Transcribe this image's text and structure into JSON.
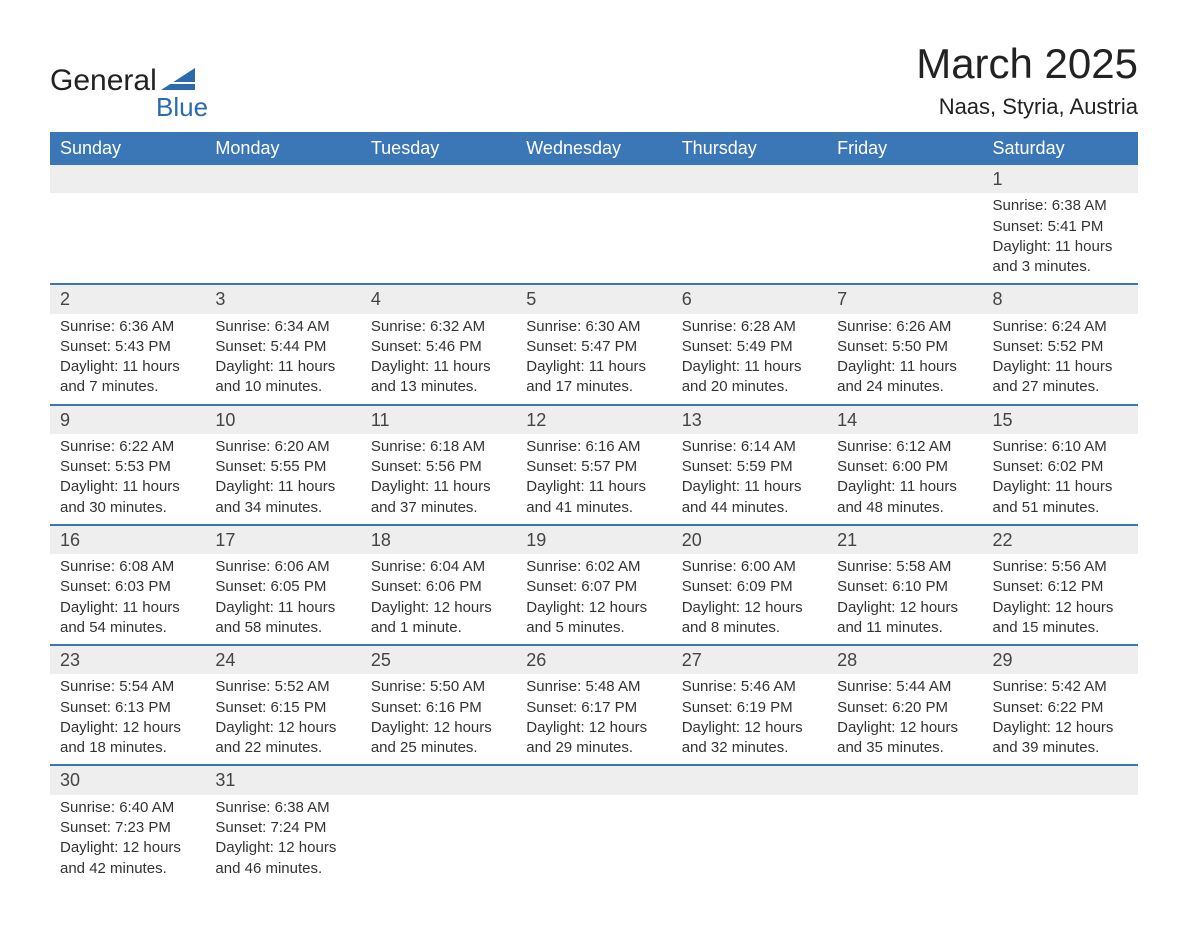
{
  "logo": {
    "top": "General",
    "bottom": "Blue",
    "shape_color": "#2b6aad"
  },
  "title": "March 2025",
  "location": "Naas, Styria, Austria",
  "header_bg": "#3b77b6",
  "daynum_bg": "#eeeeee",
  "border_color": "#3b77b6",
  "columns": [
    "Sunday",
    "Monday",
    "Tuesday",
    "Wednesday",
    "Thursday",
    "Friday",
    "Saturday"
  ],
  "weeks": [
    [
      null,
      null,
      null,
      null,
      null,
      null,
      {
        "n": "1",
        "sr": "Sunrise: 6:38 AM",
        "ss": "Sunset: 5:41 PM",
        "d1": "Daylight: 11 hours",
        "d2": "and 3 minutes."
      }
    ],
    [
      {
        "n": "2",
        "sr": "Sunrise: 6:36 AM",
        "ss": "Sunset: 5:43 PM",
        "d1": "Daylight: 11 hours",
        "d2": "and 7 minutes."
      },
      {
        "n": "3",
        "sr": "Sunrise: 6:34 AM",
        "ss": "Sunset: 5:44 PM",
        "d1": "Daylight: 11 hours",
        "d2": "and 10 minutes."
      },
      {
        "n": "4",
        "sr": "Sunrise: 6:32 AM",
        "ss": "Sunset: 5:46 PM",
        "d1": "Daylight: 11 hours",
        "d2": "and 13 minutes."
      },
      {
        "n": "5",
        "sr": "Sunrise: 6:30 AM",
        "ss": "Sunset: 5:47 PM",
        "d1": "Daylight: 11 hours",
        "d2": "and 17 minutes."
      },
      {
        "n": "6",
        "sr": "Sunrise: 6:28 AM",
        "ss": "Sunset: 5:49 PM",
        "d1": "Daylight: 11 hours",
        "d2": "and 20 minutes."
      },
      {
        "n": "7",
        "sr": "Sunrise: 6:26 AM",
        "ss": "Sunset: 5:50 PM",
        "d1": "Daylight: 11 hours",
        "d2": "and 24 minutes."
      },
      {
        "n": "8",
        "sr": "Sunrise: 6:24 AM",
        "ss": "Sunset: 5:52 PM",
        "d1": "Daylight: 11 hours",
        "d2": "and 27 minutes."
      }
    ],
    [
      {
        "n": "9",
        "sr": "Sunrise: 6:22 AM",
        "ss": "Sunset: 5:53 PM",
        "d1": "Daylight: 11 hours",
        "d2": "and 30 minutes."
      },
      {
        "n": "10",
        "sr": "Sunrise: 6:20 AM",
        "ss": "Sunset: 5:55 PM",
        "d1": "Daylight: 11 hours",
        "d2": "and 34 minutes."
      },
      {
        "n": "11",
        "sr": "Sunrise: 6:18 AM",
        "ss": "Sunset: 5:56 PM",
        "d1": "Daylight: 11 hours",
        "d2": "and 37 minutes."
      },
      {
        "n": "12",
        "sr": "Sunrise: 6:16 AM",
        "ss": "Sunset: 5:57 PM",
        "d1": "Daylight: 11 hours",
        "d2": "and 41 minutes."
      },
      {
        "n": "13",
        "sr": "Sunrise: 6:14 AM",
        "ss": "Sunset: 5:59 PM",
        "d1": "Daylight: 11 hours",
        "d2": "and 44 minutes."
      },
      {
        "n": "14",
        "sr": "Sunrise: 6:12 AM",
        "ss": "Sunset: 6:00 PM",
        "d1": "Daylight: 11 hours",
        "d2": "and 48 minutes."
      },
      {
        "n": "15",
        "sr": "Sunrise: 6:10 AM",
        "ss": "Sunset: 6:02 PM",
        "d1": "Daylight: 11 hours",
        "d2": "and 51 minutes."
      }
    ],
    [
      {
        "n": "16",
        "sr": "Sunrise: 6:08 AM",
        "ss": "Sunset: 6:03 PM",
        "d1": "Daylight: 11 hours",
        "d2": "and 54 minutes."
      },
      {
        "n": "17",
        "sr": "Sunrise: 6:06 AM",
        "ss": "Sunset: 6:05 PM",
        "d1": "Daylight: 11 hours",
        "d2": "and 58 minutes."
      },
      {
        "n": "18",
        "sr": "Sunrise: 6:04 AM",
        "ss": "Sunset: 6:06 PM",
        "d1": "Daylight: 12 hours",
        "d2": "and 1 minute."
      },
      {
        "n": "19",
        "sr": "Sunrise: 6:02 AM",
        "ss": "Sunset: 6:07 PM",
        "d1": "Daylight: 12 hours",
        "d2": "and 5 minutes."
      },
      {
        "n": "20",
        "sr": "Sunrise: 6:00 AM",
        "ss": "Sunset: 6:09 PM",
        "d1": "Daylight: 12 hours",
        "d2": "and 8 minutes."
      },
      {
        "n": "21",
        "sr": "Sunrise: 5:58 AM",
        "ss": "Sunset: 6:10 PM",
        "d1": "Daylight: 12 hours",
        "d2": "and 11 minutes."
      },
      {
        "n": "22",
        "sr": "Sunrise: 5:56 AM",
        "ss": "Sunset: 6:12 PM",
        "d1": "Daylight: 12 hours",
        "d2": "and 15 minutes."
      }
    ],
    [
      {
        "n": "23",
        "sr": "Sunrise: 5:54 AM",
        "ss": "Sunset: 6:13 PM",
        "d1": "Daylight: 12 hours",
        "d2": "and 18 minutes."
      },
      {
        "n": "24",
        "sr": "Sunrise: 5:52 AM",
        "ss": "Sunset: 6:15 PM",
        "d1": "Daylight: 12 hours",
        "d2": "and 22 minutes."
      },
      {
        "n": "25",
        "sr": "Sunrise: 5:50 AM",
        "ss": "Sunset: 6:16 PM",
        "d1": "Daylight: 12 hours",
        "d2": "and 25 minutes."
      },
      {
        "n": "26",
        "sr": "Sunrise: 5:48 AM",
        "ss": "Sunset: 6:17 PM",
        "d1": "Daylight: 12 hours",
        "d2": "and 29 minutes."
      },
      {
        "n": "27",
        "sr": "Sunrise: 5:46 AM",
        "ss": "Sunset: 6:19 PM",
        "d1": "Daylight: 12 hours",
        "d2": "and 32 minutes."
      },
      {
        "n": "28",
        "sr": "Sunrise: 5:44 AM",
        "ss": "Sunset: 6:20 PM",
        "d1": "Daylight: 12 hours",
        "d2": "and 35 minutes."
      },
      {
        "n": "29",
        "sr": "Sunrise: 5:42 AM",
        "ss": "Sunset: 6:22 PM",
        "d1": "Daylight: 12 hours",
        "d2": "and 39 minutes."
      }
    ],
    [
      {
        "n": "30",
        "sr": "Sunrise: 6:40 AM",
        "ss": "Sunset: 7:23 PM",
        "d1": "Daylight: 12 hours",
        "d2": "and 42 minutes."
      },
      {
        "n": "31",
        "sr": "Sunrise: 6:38 AM",
        "ss": "Sunset: 7:24 PM",
        "d1": "Daylight: 12 hours",
        "d2": "and 46 minutes."
      },
      null,
      null,
      null,
      null,
      null
    ]
  ]
}
